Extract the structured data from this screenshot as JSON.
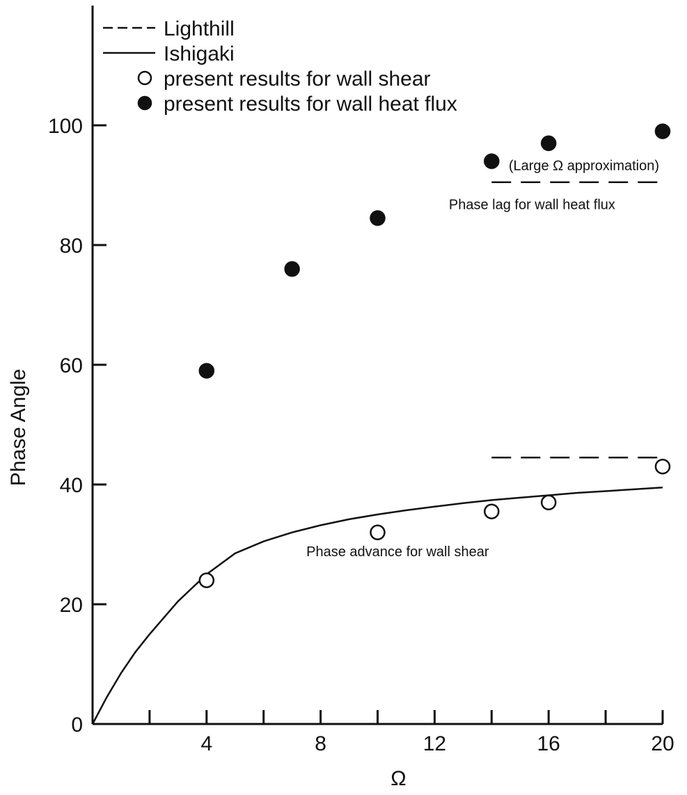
{
  "chart_data": {
    "type": "scatter",
    "xlabel": "Ω",
    "ylabel": "Phase Angle",
    "xlim": [
      0,
      20
    ],
    "ylim": [
      0,
      120
    ],
    "x_ticks": [
      4,
      8,
      12,
      16,
      20
    ],
    "x_minor_ticks": [
      2,
      6,
      10,
      14,
      18
    ],
    "y_ticks": [
      0,
      20,
      40,
      60,
      80,
      100
    ],
    "grid": false,
    "legend_position": "top-left",
    "legend": [
      {
        "label": "Lighthill",
        "style": "dashed-line"
      },
      {
        "label": "Ishigaki",
        "style": "solid-line"
      },
      {
        "label": "present results for wall shear",
        "style": "open-circle"
      },
      {
        "label": "present results for wall heat flux",
        "style": "filled-circle"
      }
    ],
    "series": [
      {
        "name": "present results for wall shear",
        "marker": "open-circle",
        "x": [
          4,
          10,
          14,
          16,
          20
        ],
        "y": [
          24,
          32,
          35.5,
          37,
          43
        ]
      },
      {
        "name": "present results for wall heat flux",
        "marker": "filled-circle",
        "x": [
          4,
          7,
          10,
          14,
          16,
          20
        ],
        "y": [
          59,
          76,
          84.5,
          94,
          97,
          99
        ]
      },
      {
        "name": "Ishigaki",
        "style": "solid",
        "x": [
          0,
          0.5,
          1,
          1.5,
          2,
          3,
          4,
          5,
          6,
          7,
          8,
          9,
          10,
          11,
          12,
          13,
          14,
          15,
          16,
          17,
          18,
          19,
          20
        ],
        "y": [
          0,
          4.5,
          8.5,
          12,
          15,
          20.5,
          25,
          28.5,
          30.5,
          32,
          33.2,
          34.2,
          35,
          35.7,
          36.3,
          36.9,
          37.4,
          37.8,
          38.2,
          38.6,
          38.9,
          39.2,
          39.5
        ]
      },
      {
        "name": "Lighthill",
        "style": "dashed",
        "x": [
          14,
          20
        ],
        "y": [
          44.5,
          44.5
        ]
      },
      {
        "name": "Lighthill heat flux",
        "style": "dashed",
        "x": [
          14,
          20
        ],
        "y": [
          90.5,
          90.5
        ]
      }
    ],
    "annotations": {
      "large_omega": "(Large Ω approximation)",
      "heat_flux_lag": "Phase lag for wall heat flux",
      "shear_advance": "Phase advance for wall shear"
    },
    "annotation_positions": {
      "large_omega": [
        14.6,
        92.5
      ],
      "heat_flux_lag": [
        12.5,
        86
      ],
      "shear_advance": [
        7.5,
        28
      ]
    }
  }
}
